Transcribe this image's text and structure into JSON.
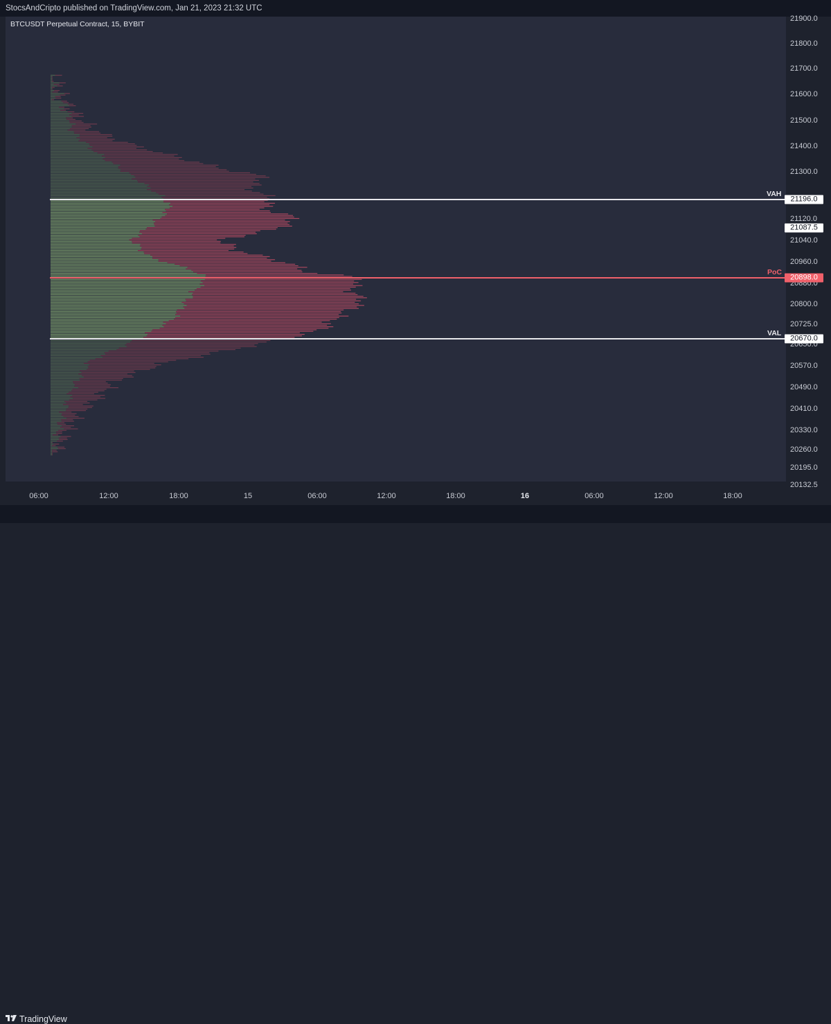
{
  "header": {
    "publish_line": "StocsAndCripto published on TradingView.com, Jan 21, 2023 21:32 UTC"
  },
  "chart": {
    "symbol_title": "BTCUSDT Perpetual Contract, 15, BYBIT"
  },
  "price_axis": {
    "ticks": [
      "21900.0",
      "21800.0",
      "21700.0",
      "21600.0",
      "21500.0",
      "21400.0",
      "21300.0",
      "21120.0",
      "21040.0",
      "20960.0",
      "20880.0",
      "20800.0",
      "20725.0",
      "20650.0",
      "20570.0",
      "20490.0",
      "20410.0",
      "20330.0",
      "20260.0",
      "20195.0",
      "20132.5"
    ]
  },
  "time_axis": {
    "ticks": [
      "06:00",
      "12:00",
      "18:00",
      "15",
      "06:00",
      "12:00",
      "18:00",
      "16",
      "06:00",
      "12:00",
      "18:00"
    ]
  },
  "levels": {
    "vah": {
      "label": "VAH",
      "price": "21196.0"
    },
    "poc": {
      "label": "PoC",
      "price": "20898.0"
    },
    "val": {
      "label": "VAL",
      "price": "20670.0"
    },
    "current_price": "21087.5"
  },
  "colors": {
    "background": "#282c3c",
    "buy_volume": "#7a9b6a",
    "sell_volume": "#a8475e",
    "buy_volume_faint": "#4f6350",
    "sell_volume_faint": "#6d3a4c",
    "poc_line": "#f0606a",
    "value_area_line": "#e8e8ec"
  },
  "footer": {
    "brand": "TradingView",
    "logo_icon": "tradingview-logo-icon"
  }
}
